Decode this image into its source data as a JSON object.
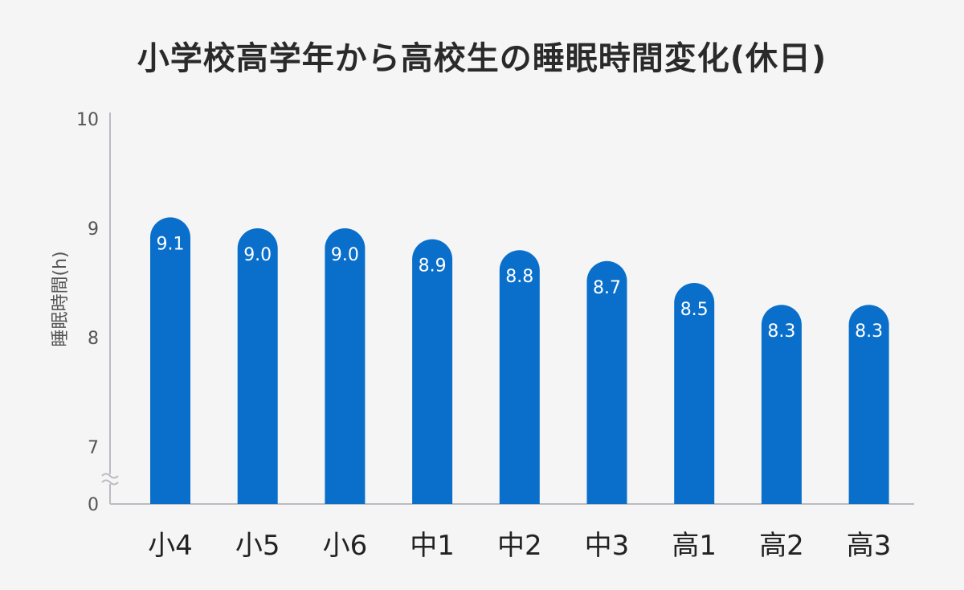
{
  "chart_data": {
    "type": "bar",
    "title": "小学校高学年から高校生の睡眠時間変化(休日)",
    "ylabel": "睡眠時間(h)",
    "xlabel": "",
    "categories": [
      "小4",
      "小5",
      "小6",
      "中1",
      "中2",
      "中3",
      "高1",
      "高2",
      "高3"
    ],
    "values": [
      9.1,
      9.0,
      9.0,
      8.9,
      8.8,
      8.7,
      8.5,
      8.3,
      8.3
    ],
    "value_labels": [
      "9.1",
      "9.0",
      "9.0",
      "8.9",
      "8.8",
      "8.7",
      "8.5",
      "8.3",
      "8.3"
    ],
    "y_ticks": [
      "0",
      "7",
      "8",
      "9",
      "10"
    ],
    "ylim": [
      0,
      10
    ],
    "axis_break": true,
    "bar_color": "#0a6fcb",
    "grid": false
  }
}
